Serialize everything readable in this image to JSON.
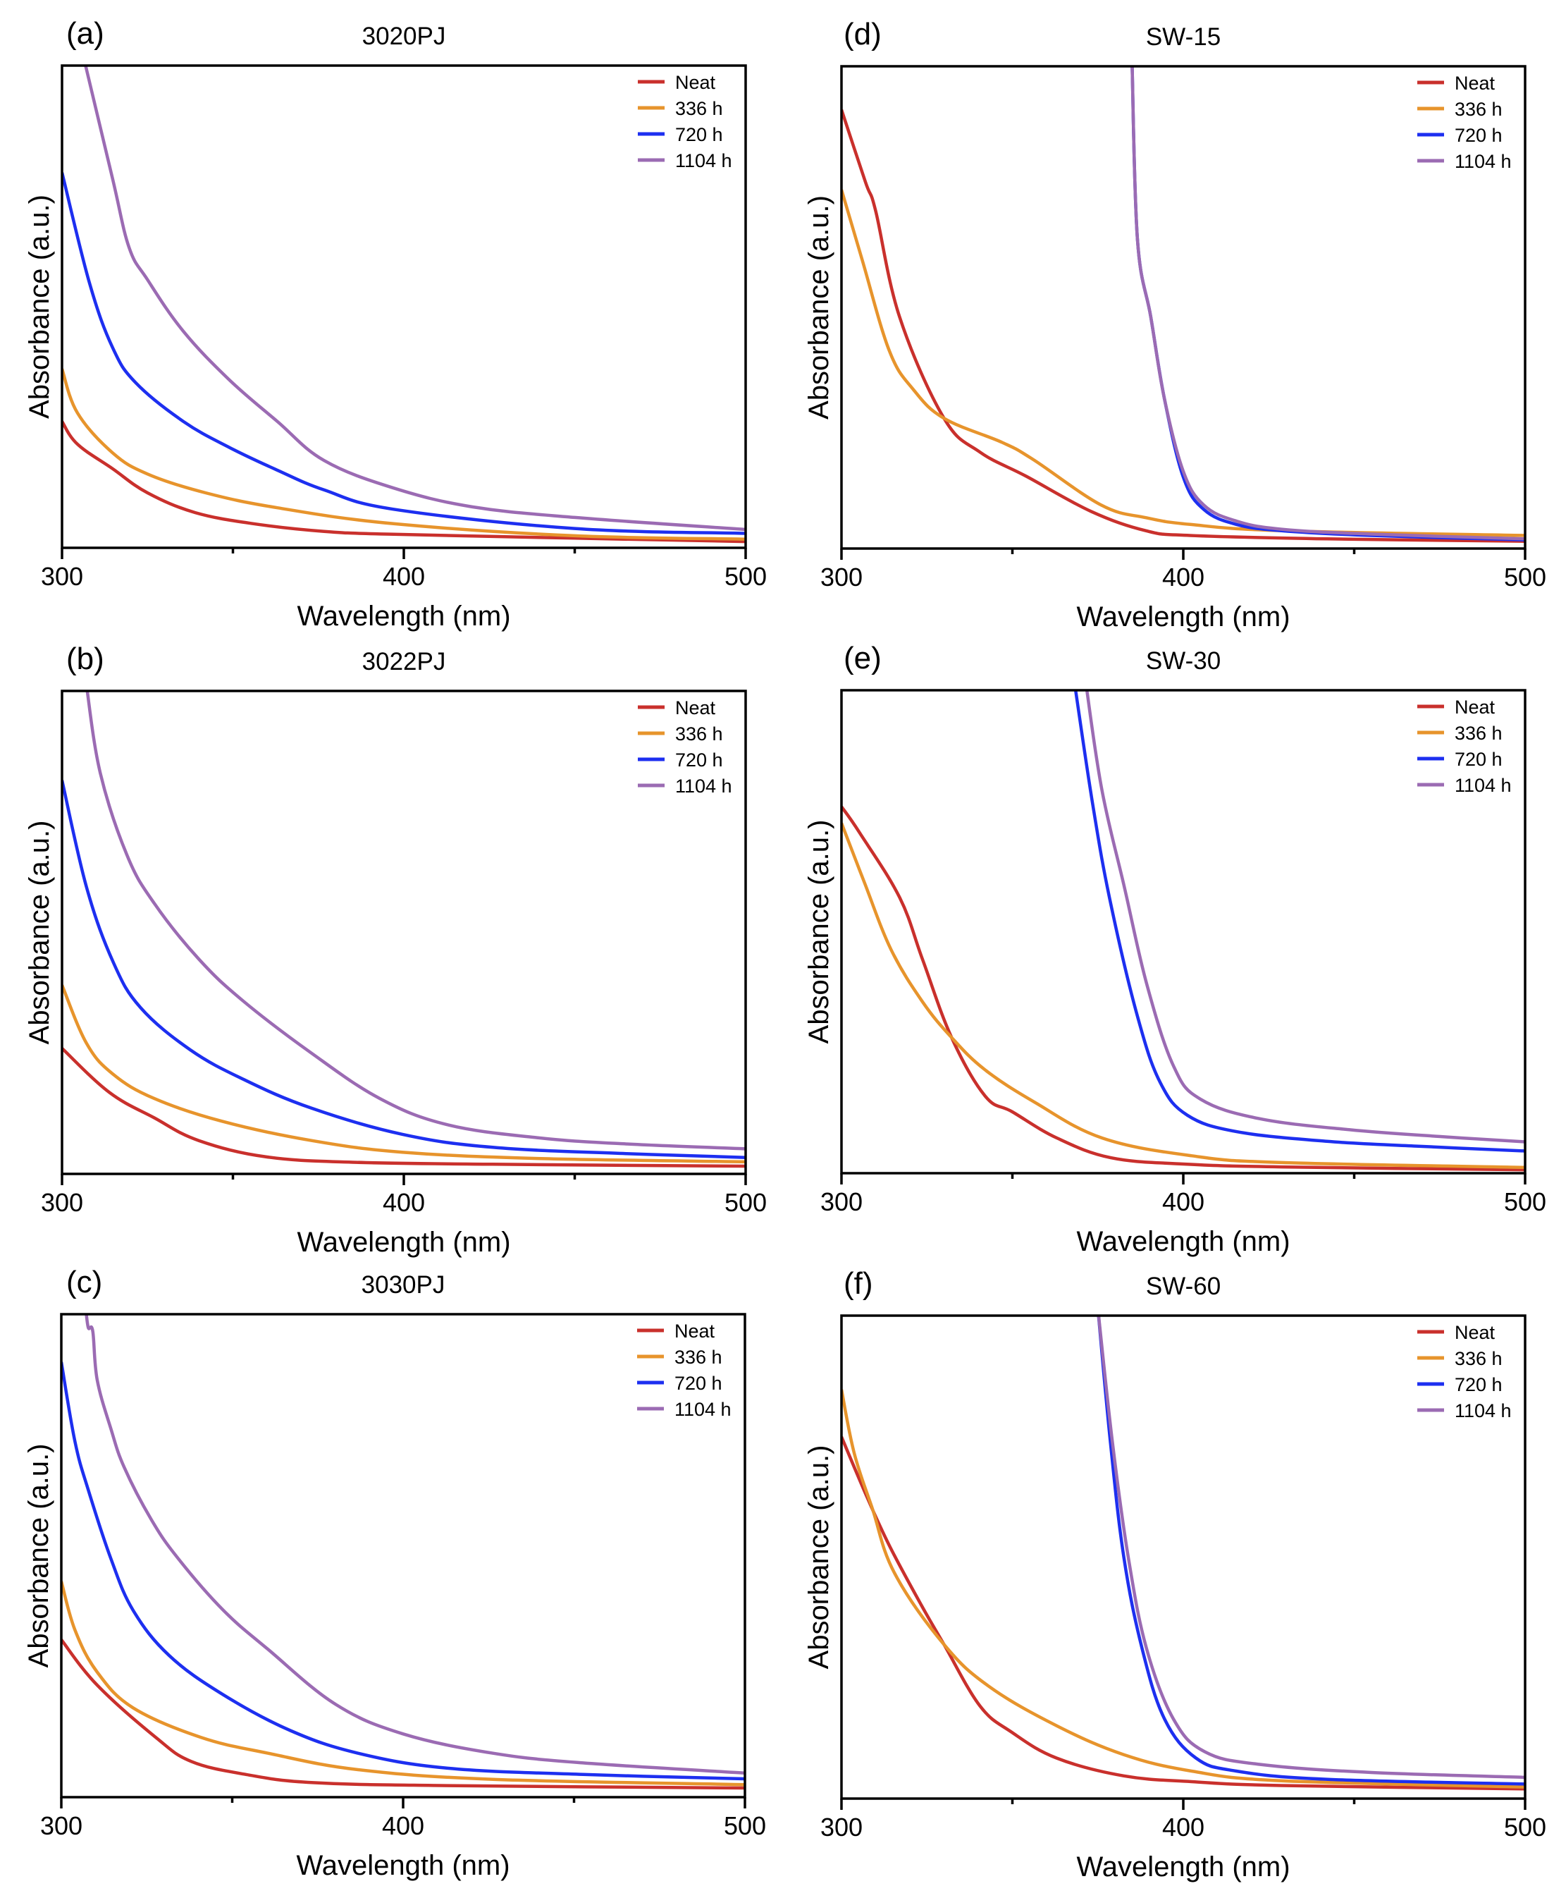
{
  "figure": {
    "legend_entries": [
      "Neat",
      "336 h",
      "720 h",
      "1104 h"
    ],
    "series_colors": {
      "Neat": "#c9302c",
      "336 h": "#e7942c",
      "720 h": "#1d2ff0",
      "1104 h": "#9b6bb3"
    }
  },
  "chart_data": [
    {
      "type": "line",
      "panel": "(a)",
      "title": "3020PJ",
      "xlabel": "Wavelength (nm)",
      "ylabel": "Absorbance (a.u.)",
      "xlim": [
        300,
        500
      ],
      "ylim": [
        0,
        1
      ],
      "xticks": [
        300,
        400,
        500
      ],
      "xticks_minor": [
        350,
        450
      ],
      "yticks": [],
      "grid": false,
      "legend_position": "top-right",
      "series": [
        {
          "name": "Neat",
          "x": [
            300,
            304.5,
            314.8,
            325,
            339,
            356,
            376.7,
            397,
            450,
            500
          ],
          "y": [
            0.262,
            0.215,
            0.164,
            0.114,
            0.073,
            0.05,
            0.034,
            0.028,
            0.02,
            0.013
          ]
        },
        {
          "name": "336 h",
          "x": [
            300,
            304.5,
            314.8,
            325,
            342,
            363,
            397,
            450,
            500
          ],
          "y": [
            0.371,
            0.28,
            0.197,
            0.153,
            0.114,
            0.083,
            0.05,
            0.025,
            0.018
          ]
        },
        {
          "name": "720 h",
          "x": [
            300,
            308,
            314.8,
            321.6,
            335.5,
            349,
            363,
            376.7,
            397,
            450,
            500
          ],
          "y": [
            0.778,
            0.55,
            0.415,
            0.342,
            0.262,
            0.208,
            0.161,
            0.12,
            0.08,
            0.04,
            0.03
          ]
        },
        {
          "name": "1104 h",
          "x": [
            306.6,
            314.8,
            319.6,
            325,
            335.5,
            349,
            363,
            376.7,
            397,
            420,
            450,
            500
          ],
          "y": [
            1.0,
            0.765,
            0.623,
            0.556,
            0.449,
            0.348,
            0.262,
            0.181,
            0.124,
            0.085,
            0.063,
            0.038
          ]
        }
      ]
    },
    {
      "type": "line",
      "panel": "(b)",
      "title": "3022PJ",
      "xlabel": "Wavelength (nm)",
      "ylabel": "Absorbance (a.u.)",
      "xlim": [
        300,
        500
      ],
      "ylim": [
        0,
        1
      ],
      "xticks": [
        300,
        400,
        500
      ],
      "xticks_minor": [
        350,
        450
      ],
      "yticks": [],
      "grid": false,
      "legend_position": "top-right",
      "series": [
        {
          "name": "Neat",
          "x": [
            300,
            313.8,
            327,
            340,
            360,
            386,
            426,
            500
          ],
          "y": [
            0.26,
            0.169,
            0.116,
            0.069,
            0.035,
            0.024,
            0.02,
            0.016
          ]
        },
        {
          "name": "336 h",
          "x": [
            300,
            307.2,
            315,
            327,
            346.8,
            373,
            399.5,
            439,
            500
          ],
          "y": [
            0.391,
            0.27,
            0.206,
            0.156,
            0.109,
            0.069,
            0.045,
            0.032,
            0.025
          ]
        },
        {
          "name": "720 h",
          "x": [
            300,
            307.2,
            315,
            323,
            337.5,
            353,
            373,
            399.5,
            426,
            465,
            500
          ],
          "y": [
            0.815,
            0.593,
            0.438,
            0.344,
            0.257,
            0.196,
            0.136,
            0.082,
            0.055,
            0.042,
            0.034
          ]
        },
        {
          "name": "1104 h",
          "x": [
            307.2,
            311.2,
            319,
            327,
            340,
            353,
            373,
            393,
            412.6,
            439,
            465,
            500
          ],
          "y": [
            1.0,
            0.83,
            0.66,
            0.56,
            0.445,
            0.358,
            0.25,
            0.156,
            0.102,
            0.075,
            0.062,
            0.052
          ]
        }
      ]
    },
    {
      "type": "line",
      "panel": "(c)",
      "title": "3030PJ",
      "xlabel": "Wavelength (nm)",
      "ylabel": "Absorbance (a.u.)",
      "xlim": [
        300,
        500
      ],
      "ylim": [
        0,
        1
      ],
      "xticks": [
        300,
        400,
        500
      ],
      "xticks_minor": [
        350,
        450
      ],
      "yticks": [],
      "grid": false,
      "legend_position": "top-right",
      "series": [
        {
          "name": "Neat",
          "x": [
            300,
            310.5,
            327.6,
            338,
            354,
            373.7,
            413,
            500
          ],
          "y": [
            0.326,
            0.232,
            0.124,
            0.074,
            0.047,
            0.03,
            0.024,
            0.019
          ]
        },
        {
          "name": "336 h",
          "x": [
            300,
            304,
            310.5,
            321,
            340.8,
            360.5,
            386.8,
            426.3,
            500
          ],
          "y": [
            0.447,
            0.346,
            0.259,
            0.185,
            0.124,
            0.091,
            0.057,
            0.037,
            0.026
          ]
        },
        {
          "name": "720 h",
          "x": [
            300,
            304,
            307.9,
            314.5,
            321,
            331.6,
            347.4,
            367,
            386.8,
            413,
            452.6,
            500
          ],
          "y": [
            0.901,
            0.736,
            0.636,
            0.494,
            0.387,
            0.293,
            0.212,
            0.138,
            0.091,
            0.06,
            0.047,
            0.038
          ]
        },
        {
          "name": "1104 h",
          "x": [
            307.2,
            307.9,
            309.2,
            310.5,
            314.5,
            318.4,
            326.3,
            334.2,
            347.4,
            360.5,
            380.3,
            400,
            426.3,
            452.6,
            500
          ],
          "y": [
            1.0,
            0.972,
            0.965,
            0.864,
            0.763,
            0.683,
            0.575,
            0.494,
            0.387,
            0.306,
            0.192,
            0.131,
            0.091,
            0.071,
            0.05
          ]
        }
      ]
    },
    {
      "type": "line",
      "panel": "(d)",
      "title": "SW-15",
      "xlabel": "Wavelength (nm)",
      "ylabel": "Absorbance (a.u.)",
      "xlim": [
        300,
        500
      ],
      "ylim": [
        0,
        1
      ],
      "xticks": [
        300,
        400,
        500
      ],
      "xticks_minor": [
        350,
        450
      ],
      "yticks": [],
      "grid": false,
      "legend_position": "top-right",
      "series": [
        {
          "name": "Neat",
          "x": [
            300,
            307,
            310,
            317,
            330,
            340.5,
            354,
            373,
            389,
            402,
            442,
            500
          ],
          "y": [
            0.91,
            0.76,
            0.7,
            0.48,
            0.27,
            0.2,
            0.15,
            0.077,
            0.037,
            0.027,
            0.02,
            0.015
          ]
        },
        {
          "name": "336 h",
          "x": [
            300,
            306,
            314,
            321,
            330,
            347,
            356,
            376,
            389,
            402,
            429,
            500
          ],
          "y": [
            0.744,
            0.6,
            0.41,
            0.33,
            0.27,
            0.22,
            0.185,
            0.09,
            0.064,
            0.05,
            0.037,
            0.027
          ]
        },
        {
          "name": "720 h",
          "x": [
            385,
            386.6,
            390.5,
            394.5,
            400,
            406,
            415.5,
            428.7,
            455,
            500
          ],
          "y": [
            1.0,
            0.64,
            0.48,
            0.31,
            0.148,
            0.081,
            0.05,
            0.037,
            0.027,
            0.018
          ]
        },
        {
          "name": "1104 h",
          "x": [
            385,
            386.6,
            390.5,
            394.5,
            400,
            406,
            415.5,
            428.7,
            455,
            500
          ],
          "y": [
            1.0,
            0.64,
            0.48,
            0.31,
            0.16,
            0.09,
            0.057,
            0.04,
            0.03,
            0.02
          ]
        }
      ]
    },
    {
      "type": "line",
      "panel": "(e)",
      "title": "SW-30",
      "xlabel": "Wavelength (nm)",
      "ylabel": "Absorbance (a.u.)",
      "xlim": [
        300,
        500
      ],
      "ylim": [
        0,
        1
      ],
      "xticks": [
        300,
        400,
        500
      ],
      "xticks_minor": [
        350,
        450
      ],
      "yticks": [],
      "grid": false,
      "legend_position": "top-right",
      "series": [
        {
          "name": "Neat",
          "x": [
            300,
            305.3,
            317,
            323.7,
            332.2,
            342,
            350,
            363,
            378.8,
            400,
            428.8,
            500
          ],
          "y": [
            0.759,
            0.705,
            0.571,
            0.443,
            0.281,
            0.16,
            0.127,
            0.073,
            0.032,
            0.019,
            0.013,
            0.007
          ]
        },
        {
          "name": "336 h",
          "x": [
            300,
            306.6,
            314.5,
            323.7,
            332.2,
            342,
            356.5,
            376.2,
            402.5,
            428.8,
            500
          ],
          "y": [
            0.725,
            0.604,
            0.463,
            0.355,
            0.281,
            0.214,
            0.147,
            0.073,
            0.036,
            0.022,
            0.012
          ]
        },
        {
          "name": "720 h",
          "x": [
            368.3,
            373.6,
            378.8,
            386.7,
            393.3,
            401.2,
            415.6,
            442,
            468.2,
            500
          ],
          "y": [
            1.0,
            0.759,
            0.557,
            0.322,
            0.187,
            0.12,
            0.086,
            0.066,
            0.056,
            0.046
          ]
        },
        {
          "name": "1104 h",
          "x": [
            371.6,
            376.2,
            382.8,
            389.4,
            397.2,
            405.1,
            422.2,
            448.5,
            474.8,
            500
          ],
          "y": [
            1.0,
            0.793,
            0.591,
            0.389,
            0.221,
            0.153,
            0.113,
            0.09,
            0.076,
            0.065
          ]
        }
      ]
    },
    {
      "type": "line",
      "panel": "(f)",
      "title": "SW-60",
      "xlabel": "Wavelength (nm)",
      "ylabel": "Absorbance (a.u.)",
      "xlim": [
        300,
        500
      ],
      "ylim": [
        0,
        1
      ],
      "xticks": [
        300,
        400,
        500
      ],
      "xticks_minor": [
        350,
        450
      ],
      "yticks": [],
      "grid": false,
      "legend_position": "top-right",
      "series": [
        {
          "name": "Neat",
          "x": [
            300,
            307.6,
            314.2,
            323.4,
            330,
            340.5,
            349.7,
            362.9,
            382.6,
            402.4,
            428.7,
            500
          ],
          "y": [
            0.749,
            0.622,
            0.521,
            0.4,
            0.319,
            0.192,
            0.138,
            0.084,
            0.047,
            0.035,
            0.027,
            0.02
          ]
        },
        {
          "name": "336 h",
          "x": [
            300,
            303.7,
            309,
            315.5,
            330,
            343.2,
            362.9,
            382.6,
            402.4,
            428.7,
            500
          ],
          "y": [
            0.847,
            0.716,
            0.601,
            0.467,
            0.319,
            0.232,
            0.151,
            0.091,
            0.057,
            0.037,
            0.024
          ]
        },
        {
          "name": "720 h",
          "x": [
            375.1,
            378.7,
            382.6,
            387.9,
            394.5,
            403.7,
            415.5,
            441.8,
            500
          ],
          "y": [
            1.0,
            0.736,
            0.5,
            0.312,
            0.165,
            0.084,
            0.057,
            0.04,
            0.03
          ]
        },
        {
          "name": "1104 h",
          "x": [
            375.1,
            379.3,
            383.9,
            389.2,
            397.1,
            406.3,
            422.1,
            455,
            500
          ],
          "y": [
            1.0,
            0.736,
            0.5,
            0.312,
            0.165,
            0.097,
            0.071,
            0.054,
            0.044
          ]
        }
      ]
    }
  ]
}
